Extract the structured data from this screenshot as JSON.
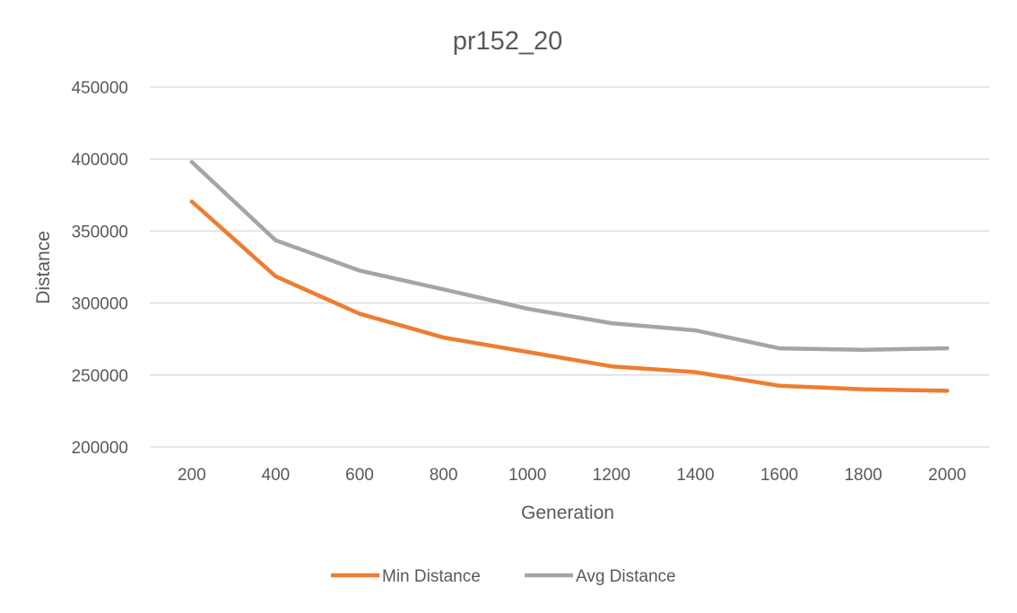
{
  "chart_data": {
    "type": "line",
    "title": "pr152_20",
    "xlabel": "Generation",
    "ylabel": "Distance",
    "categories": [
      "200",
      "400",
      "600",
      "800",
      "1000",
      "1200",
      "1400",
      "1600",
      "1800",
      "2000"
    ],
    "y_ticks": [
      "200000",
      "250000",
      "300000",
      "350000",
      "400000",
      "450000"
    ],
    "ylim": [
      200000,
      450000
    ],
    "grid": true,
    "legend_position": "bottom",
    "series": [
      {
        "name": "Min Distance",
        "color": "#ED7D31",
        "values": [
          370500,
          318500,
          292500,
          276000,
          266000,
          256000,
          252000,
          242500,
          240000,
          239000
        ]
      },
      {
        "name": "Avg Distance",
        "color": "#A5A5A5",
        "values": [
          398000,
          343500,
          322500,
          309500,
          296000,
          286000,
          281000,
          268500,
          267500,
          268500
        ]
      }
    ]
  }
}
